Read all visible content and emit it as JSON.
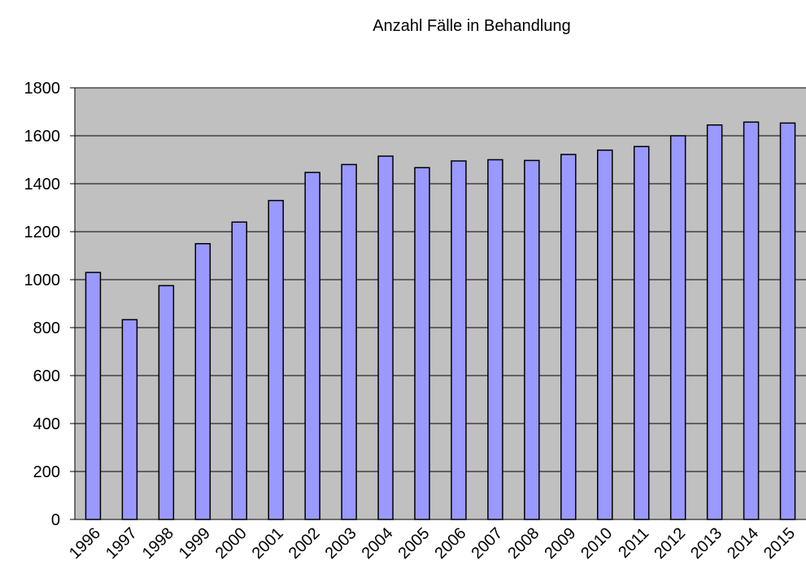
{
  "chart_data": {
    "type": "bar",
    "title": "Anzahl Fälle in Behandlung",
    "categories": [
      "1996",
      "1997",
      "1998",
      "1999",
      "2000",
      "2001",
      "2002",
      "2003",
      "2004",
      "2005",
      "2006",
      "2007",
      "2008",
      "2009",
      "2010",
      "2011",
      "2012",
      "2013",
      "2014",
      "2015"
    ],
    "values": [
      1030,
      833,
      975,
      1150,
      1240,
      1330,
      1447,
      1480,
      1515,
      1467,
      1495,
      1500,
      1497,
      1522,
      1540,
      1555,
      1600,
      1645,
      1657,
      1653
    ],
    "color": "#9999ff",
    "ylim": [
      0,
      1800
    ],
    "yticks": [
      0,
      200,
      400,
      600,
      800,
      1000,
      1200,
      1400,
      1600,
      1800
    ],
    "grid": true
  }
}
